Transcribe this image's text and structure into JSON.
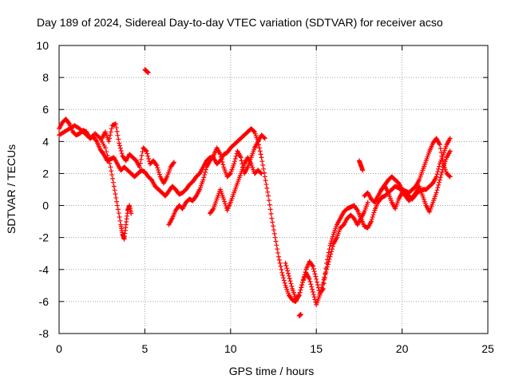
{
  "chart_data": {
    "type": "scatter",
    "title": "Day 189 of 2024, Sidereal Day-to-day VTEC variation (SDTVAR) for receiver acso",
    "xlabel": "GPS time / hours",
    "ylabel": "SDTVAR / TECUs",
    "xlim": [
      0,
      25
    ],
    "ylim": [
      -8,
      10
    ],
    "x_ticks": [
      0,
      5,
      10,
      15,
      20,
      25
    ],
    "y_ticks": [
      -8,
      -6,
      -4,
      -2,
      0,
      2,
      4,
      6,
      8,
      10
    ],
    "grid": true,
    "marker": "+",
    "color": "#ff0000",
    "series": [
      {
        "name": "SDTVAR",
        "segments": [
          {
            "x": [
              0.0,
              0.2,
              0.4,
              0.6,
              0.8,
              1.0,
              1.2,
              1.4,
              1.6,
              1.8,
              2.0,
              2.2,
              2.4,
              2.6,
              2.8,
              3.0,
              3.2,
              3.4,
              3.6,
              3.8,
              4.0,
              4.2,
              4.4,
              4.6,
              4.8,
              5.0,
              5.2,
              5.4,
              5.6,
              5.8,
              6.0,
              6.2,
              6.4,
              6.6,
              6.8,
              7.0,
              7.2,
              7.4,
              7.6,
              7.8,
              8.0,
              8.2,
              8.4,
              8.6,
              8.8,
              9.0,
              9.2,
              9.4,
              9.6,
              9.8,
              10.0,
              10.2,
              10.4,
              10.6,
              10.8,
              11.0,
              11.2,
              11.4,
              11.6,
              11.8,
              12.0,
              12.2,
              12.4,
              12.6,
              12.8,
              13.0,
              13.2,
              13.4,
              13.6,
              13.8,
              14.0,
              14.2,
              14.4,
              14.6,
              14.8,
              15.0,
              15.2,
              15.4,
              15.6,
              15.8,
              16.0,
              16.2,
              16.4,
              16.6,
              16.8,
              17.0,
              17.2,
              17.4,
              17.6,
              17.8,
              18.0,
              18.2,
              18.4,
              18.6,
              18.8,
              19.0,
              19.2,
              19.4,
              19.6,
              19.8,
              20.0,
              20.2,
              20.4,
              20.6,
              20.8,
              21.0,
              21.2,
              21.4,
              21.6,
              21.8,
              22.0,
              22.2,
              22.4,
              22.6,
              22.8
            ],
            "y": [
              4.8,
              5.2,
              5.4,
              5.1,
              4.6,
              4.4,
              4.5,
              4.7,
              4.6,
              4.2,
              4.3,
              4.0,
              3.5,
              3.2,
              2.8,
              2.9,
              3.0,
              2.6,
              2.2,
              2.4,
              2.2,
              2.0,
              1.8,
              2.0,
              2.2,
              2.1,
              1.8,
              1.6,
              1.2,
              1.0,
              0.8,
              0.6,
              0.9,
              1.2,
              1.0,
              0.7,
              0.8,
              1.0,
              1.3,
              1.5,
              1.8,
              2.0,
              2.4,
              2.8,
              3.0,
              3.0,
              2.6,
              2.8,
              3.2,
              3.3,
              3.6,
              3.8,
              4.0,
              4.2,
              4.4,
              4.6,
              4.8,
              4.6,
              4.0,
              3.0,
              1.8,
              0.6,
              -0.8,
              -2.0,
              -3.2,
              -4.2,
              -5.0,
              -5.6,
              -5.9,
              -6.0,
              -5.6,
              -4.8,
              -4.0,
              -3.5,
              -3.8,
              -4.6,
              -5.5,
              -5.2,
              -3.6,
              -2.5,
              -1.8,
              -1.2,
              -0.8,
              -0.4,
              -0.2,
              -0.1,
              0.0,
              -0.3,
              -0.8,
              -1.3,
              -1.4,
              -1.0,
              -0.3,
              0.2,
              0.5,
              0.6,
              0.8,
              1.0,
              1.2,
              1.1,
              0.9,
              0.8,
              0.6,
              0.4,
              0.7,
              0.9,
              1.0,
              1.0,
              1.2,
              1.4,
              1.8,
              2.6,
              3.2,
              3.8,
              4.2
            ]
          },
          {
            "x": [
              0.0,
              0.3,
              0.6,
              0.9,
              1.2,
              1.5,
              1.8,
              2.1,
              2.4,
              2.7,
              3.0,
              3.2,
              3.4,
              3.6,
              3.7,
              3.8,
              3.9,
              4.0,
              4.1,
              4.2
            ],
            "y": [
              4.4,
              4.6,
              4.8,
              5.0,
              4.8,
              4.5,
              4.2,
              4.5,
              4.2,
              3.6,
              2.4,
              1.2,
              0.0,
              -1.2,
              -1.8,
              -2.1,
              -1.2,
              -0.3,
              0.0,
              -0.5
            ]
          },
          {
            "x": [
              2.5,
              2.7,
              2.9,
              3.1,
              3.3,
              3.5,
              3.7,
              3.9,
              4.1,
              4.3,
              4.5,
              4.7,
              4.9,
              5.1,
              5.3,
              5.5,
              5.7,
              5.9,
              6.1,
              6.3,
              6.5,
              6.7
            ],
            "y": [
              4.2,
              4.6,
              4.0,
              5.0,
              5.1,
              3.9,
              3.1,
              2.8,
              3.2,
              3.0,
              2.8,
              2.4,
              3.6,
              3.4,
              2.6,
              2.8,
              2.5,
              1.8,
              1.4,
              1.8,
              2.4,
              2.7
            ]
          },
          {
            "x": [
              6.4,
              6.6,
              6.8,
              7.0,
              7.2,
              7.4,
              7.6,
              7.8,
              8.0,
              8.2,
              8.4,
              8.6,
              8.8,
              9.0,
              9.2,
              9.4,
              9.6,
              9.8,
              10.0,
              10.2,
              10.4,
              10.6,
              10.8,
              11.0,
              11.2,
              11.4,
              11.6,
              11.8,
              12.0
            ],
            "y": [
              -1.2,
              -0.8,
              -0.3,
              0.0,
              -0.2,
              0.2,
              0.4,
              0.3,
              0.6,
              1.0,
              1.6,
              2.4,
              2.8,
              3.1,
              3.6,
              3.2,
              2.4,
              1.8,
              2.0,
              2.6,
              3.4,
              3.0,
              2.0,
              2.4,
              3.0,
              3.6,
              4.0,
              4.4,
              4.2
            ]
          },
          {
            "x": [
              8.8,
              9.0,
              9.2,
              9.4,
              9.6,
              9.8,
              10.0,
              10.2,
              10.4,
              10.6,
              10.8,
              11.0,
              11.2,
              11.4,
              11.6,
              11.8
            ],
            "y": [
              -0.5,
              -0.2,
              0.4,
              1.0,
              0.4,
              -0.3,
              0.2,
              0.8,
              1.4,
              2.0,
              2.6,
              3.0,
              2.6,
              2.0,
              2.2,
              2.0
            ]
          },
          {
            "x": [
              13.2,
              13.4,
              13.6,
              13.8,
              14.0,
              14.2,
              14.4,
              14.6,
              14.8,
              15.0,
              15.2,
              15.4,
              15.6,
              15.8,
              16.0,
              16.2,
              16.4,
              16.6,
              16.8,
              17.0,
              17.2,
              17.4,
              17.6,
              17.8,
              18.0
            ],
            "y": [
              -3.6,
              -4.4,
              -5.2,
              -5.8,
              -5.6,
              -4.8,
              -4.2,
              -4.6,
              -5.4,
              -6.2,
              -5.6,
              -4.8,
              -4.0,
              -3.2,
              -2.4,
              -2.0,
              -1.4,
              -1.2,
              -0.8,
              -0.6,
              -0.8,
              -1.2,
              -0.8,
              -0.4,
              0.2
            ]
          },
          {
            "x": [
              17.8,
              18.0,
              18.2,
              18.4,
              18.6,
              18.8,
              19.0,
              19.2,
              19.4,
              19.6,
              19.8,
              20.0,
              20.2,
              20.4,
              20.6,
              20.8,
              21.0,
              21.2,
              21.4,
              21.6,
              21.8,
              22.0,
              22.2,
              22.4,
              22.6,
              22.8
            ],
            "y": [
              0.6,
              0.8,
              0.4,
              0.2,
              0.6,
              1.0,
              1.2,
              0.8,
              0.2,
              -0.2,
              0.4,
              0.8,
              0.6,
              0.3,
              0.5,
              0.8,
              1.2,
              0.6,
              0.0,
              -0.4,
              0.2,
              0.8,
              1.6,
              2.4,
              3.0,
              3.4
            ]
          },
          {
            "x": [
              18.8,
              19.0,
              19.2,
              19.4,
              19.6,
              19.8,
              20.0,
              20.2,
              20.4,
              20.6,
              20.8,
              21.0,
              21.2,
              21.4,
              21.6,
              21.8,
              22.0,
              22.2,
              22.4,
              22.6,
              22.8
            ],
            "y": [
              1.0,
              1.3,
              1.6,
              1.8,
              1.6,
              1.4,
              1.0,
              0.9,
              0.8,
              1.0,
              1.2,
              1.6,
              2.2,
              2.8,
              3.4,
              3.9,
              4.2,
              3.8,
              2.6,
              2.0,
              1.8
            ]
          },
          {
            "x": [
              5.0,
              5.1,
              5.2
            ],
            "y": [
              8.5,
              8.4,
              8.3
            ]
          },
          {
            "x": [
              14.0,
              14.1
            ],
            "y": [
              -6.9,
              -6.8
            ]
          },
          {
            "x": [
              17.5,
              17.6,
              17.7
            ],
            "y": [
              2.8,
              2.5,
              2.2
            ]
          }
        ]
      }
    ]
  }
}
